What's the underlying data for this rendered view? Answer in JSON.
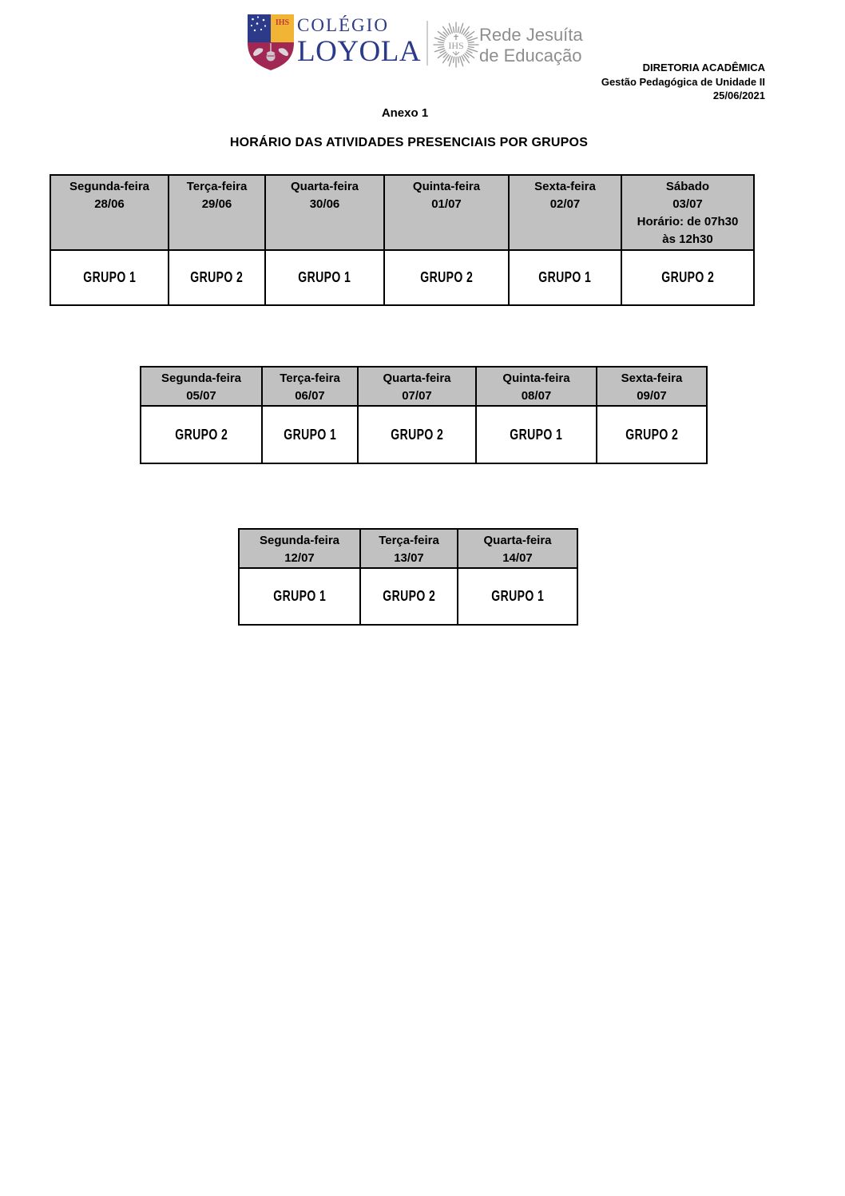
{
  "logo": {
    "crest_ihs": "IHS",
    "college_name_top": "COLÉGIO",
    "college_name_bottom": "LOYOLA",
    "sunburst_ihs": "IHS",
    "network_name_line1": "Rede Jesuíta",
    "network_name_line2": "de Educação"
  },
  "letterhead": {
    "department": "DIRETORIA ACADÊMICA",
    "unit": "Gestão Pedagógica de Unidade II",
    "date": "25/06/2021"
  },
  "titles": {
    "annex": "Anexo 1",
    "main": "HORÁRIO DAS ATIVIDADES PRESENCIAIS POR GRUPOS"
  },
  "colors": {
    "navy": "#2c3a8a",
    "crimson": "#a12852",
    "gold": "#f1b434",
    "logo_gray": "#9b9b9b",
    "table_header_bg": "#c1c1c1",
    "border": "#000000"
  },
  "schedule_tables": [
    {
      "name": "week-1",
      "columns": [
        {
          "header": [
            "Segunda-feira",
            "28/06"
          ],
          "group": "GRUPO 1"
        },
        {
          "header": [
            "Terça-feira",
            "29/06"
          ],
          "group": "GRUPO 2"
        },
        {
          "header": [
            "Quarta-feira",
            "30/06"
          ],
          "group": "GRUPO 1"
        },
        {
          "header": [
            "Quinta-feira",
            "01/07"
          ],
          "group": "GRUPO 2"
        },
        {
          "header": [
            "Sexta-feira",
            "02/07"
          ],
          "group": "GRUPO 1"
        },
        {
          "header": [
            "Sábado",
            "03/07",
            "Horário: de 07h30",
            "às 12h30"
          ],
          "group": "GRUPO 2"
        }
      ]
    },
    {
      "name": "week-2",
      "columns": [
        {
          "header": [
            "Segunda-feira",
            "05/07"
          ],
          "group": "GRUPO 2"
        },
        {
          "header": [
            "Terça-feira",
            "06/07"
          ],
          "group": "GRUPO 1"
        },
        {
          "header": [
            "Quarta-feira",
            "07/07"
          ],
          "group": "GRUPO 2"
        },
        {
          "header": [
            "Quinta-feira",
            "08/07"
          ],
          "group": "GRUPO 1"
        },
        {
          "header": [
            "Sexta-feira",
            "09/07"
          ],
          "group": "GRUPO 2"
        }
      ]
    },
    {
      "name": "week-3",
      "columns": [
        {
          "header": [
            "Segunda-feira",
            "12/07"
          ],
          "group": "GRUPO 1"
        },
        {
          "header": [
            "Terça-feira",
            "13/07"
          ],
          "group": "GRUPO 2"
        },
        {
          "header": [
            "Quarta-feira",
            "14/07"
          ],
          "group": "GRUPO 1"
        }
      ]
    }
  ]
}
